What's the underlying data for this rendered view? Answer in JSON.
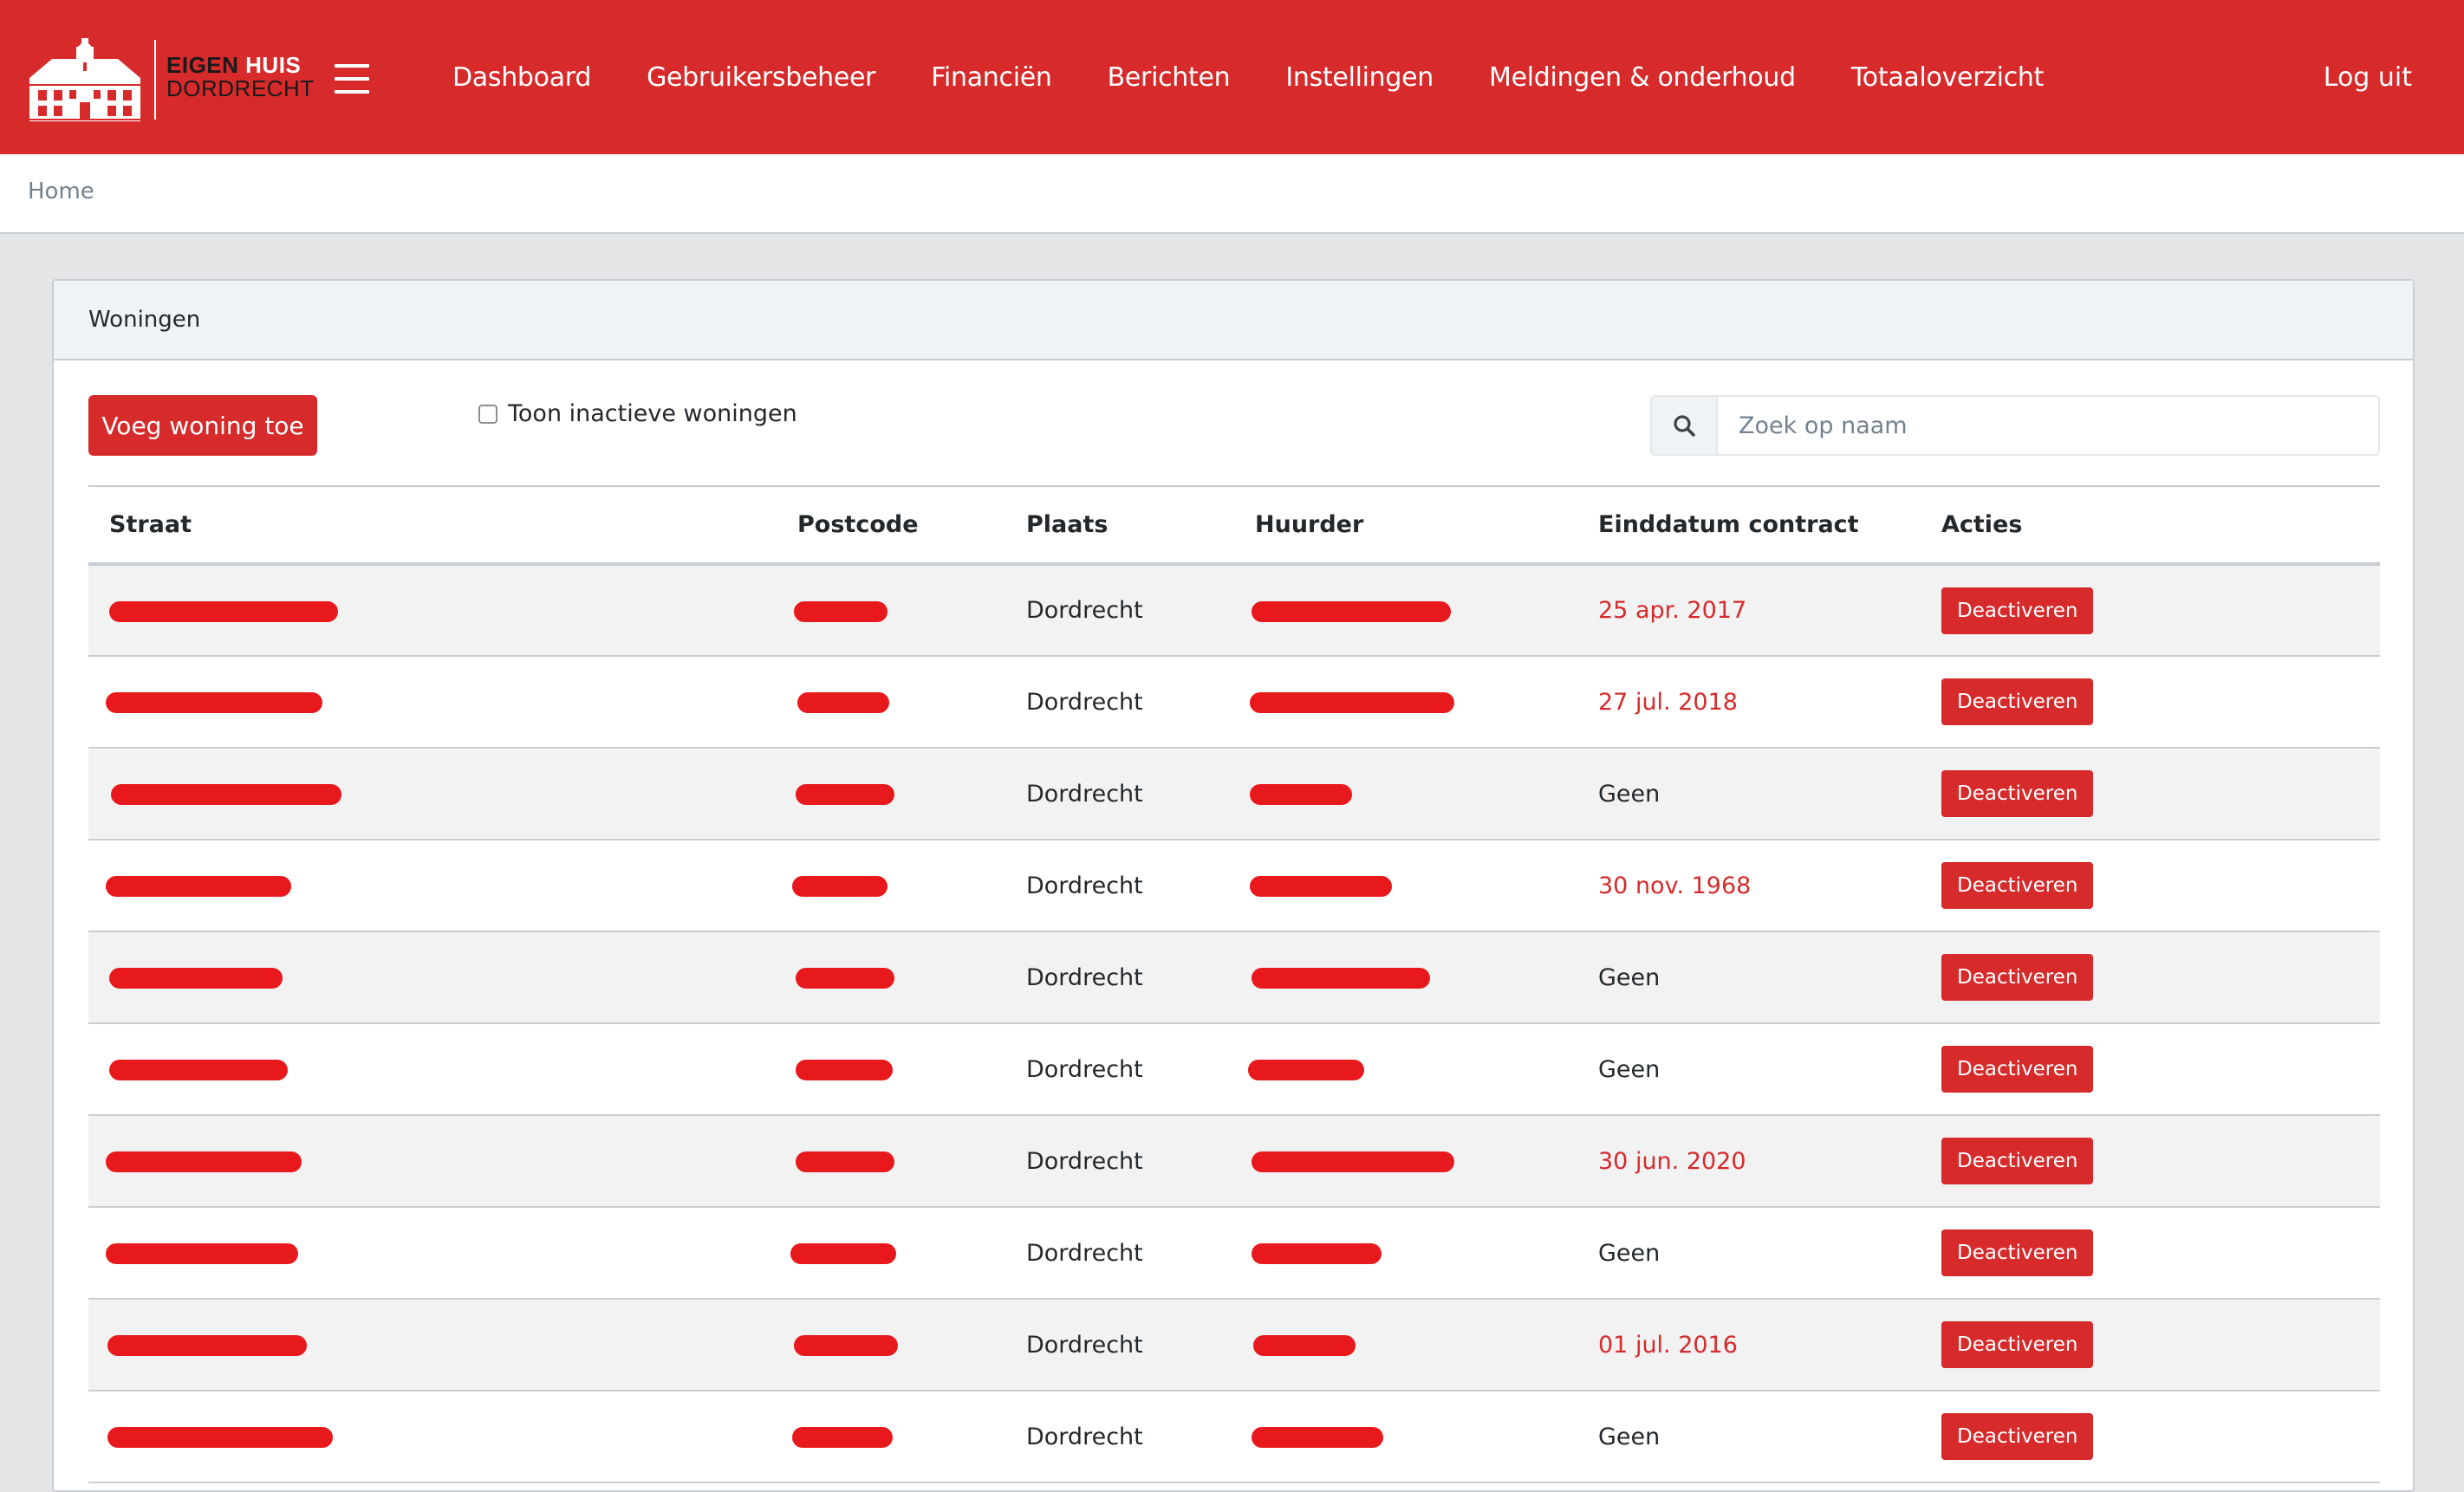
{
  "header": {
    "logo": {
      "line1_dark": "EIGEN",
      "line1_light": "HUIS",
      "line2": "DORDRECHT"
    },
    "menu_icon": "hamburger-menu-icon",
    "nav": [
      {
        "label": "Dashboard"
      },
      {
        "label": "Gebruikersbeheer"
      },
      {
        "label": "Financiën"
      },
      {
        "label": "Berichten"
      },
      {
        "label": "Instellingen"
      },
      {
        "label": "Meldingen & onderhoud"
      },
      {
        "label": "Totaaloverzicht"
      }
    ],
    "logout_label": "Log uit"
  },
  "breadcrumb": {
    "home": "Home"
  },
  "card": {
    "title": "Woningen",
    "add_button_label": "Voeg woning toe",
    "show_inactive_label": "Toon inactieve woningen",
    "show_inactive_checked": false,
    "search": {
      "icon": "search-icon",
      "placeholder": "Zoek op naam",
      "value": ""
    }
  },
  "table": {
    "columns": [
      "Straat",
      "Postcode",
      "Plaats",
      "Huurder",
      "Einddatum contract",
      "Acties"
    ],
    "rows": [
      {
        "plaats": "Dordrecht",
        "einddatum": "25 apr. 2017",
        "expired": true,
        "action": "Deactiveren"
      },
      {
        "plaats": "Dordrecht",
        "einddatum": "27 jul. 2018",
        "expired": true,
        "action": "Deactiveren"
      },
      {
        "plaats": "Dordrecht",
        "einddatum": "Geen",
        "expired": false,
        "action": "Deactiveren"
      },
      {
        "plaats": "Dordrecht",
        "einddatum": "30 nov. 1968",
        "expired": true,
        "action": "Deactiveren"
      },
      {
        "plaats": "Dordrecht",
        "einddatum": "Geen",
        "expired": false,
        "action": "Deactiveren"
      },
      {
        "plaats": "Dordrecht",
        "einddatum": "Geen",
        "expired": false,
        "action": "Deactiveren"
      },
      {
        "plaats": "Dordrecht",
        "einddatum": "30 jun. 2020",
        "expired": true,
        "action": "Deactiveren"
      },
      {
        "plaats": "Dordrecht",
        "einddatum": "Geen",
        "expired": false,
        "action": "Deactiveren"
      },
      {
        "plaats": "Dordrecht",
        "einddatum": "01 jul. 2016",
        "expired": true,
        "action": "Deactiveren"
      },
      {
        "plaats": "Dordrecht",
        "einddatum": "Geen",
        "expired": false,
        "action": "Deactiveren"
      }
    ]
  },
  "colors": {
    "brand_red": "#d62a2b",
    "redaction": "#e8191c",
    "background": "#e4e5e6"
  }
}
